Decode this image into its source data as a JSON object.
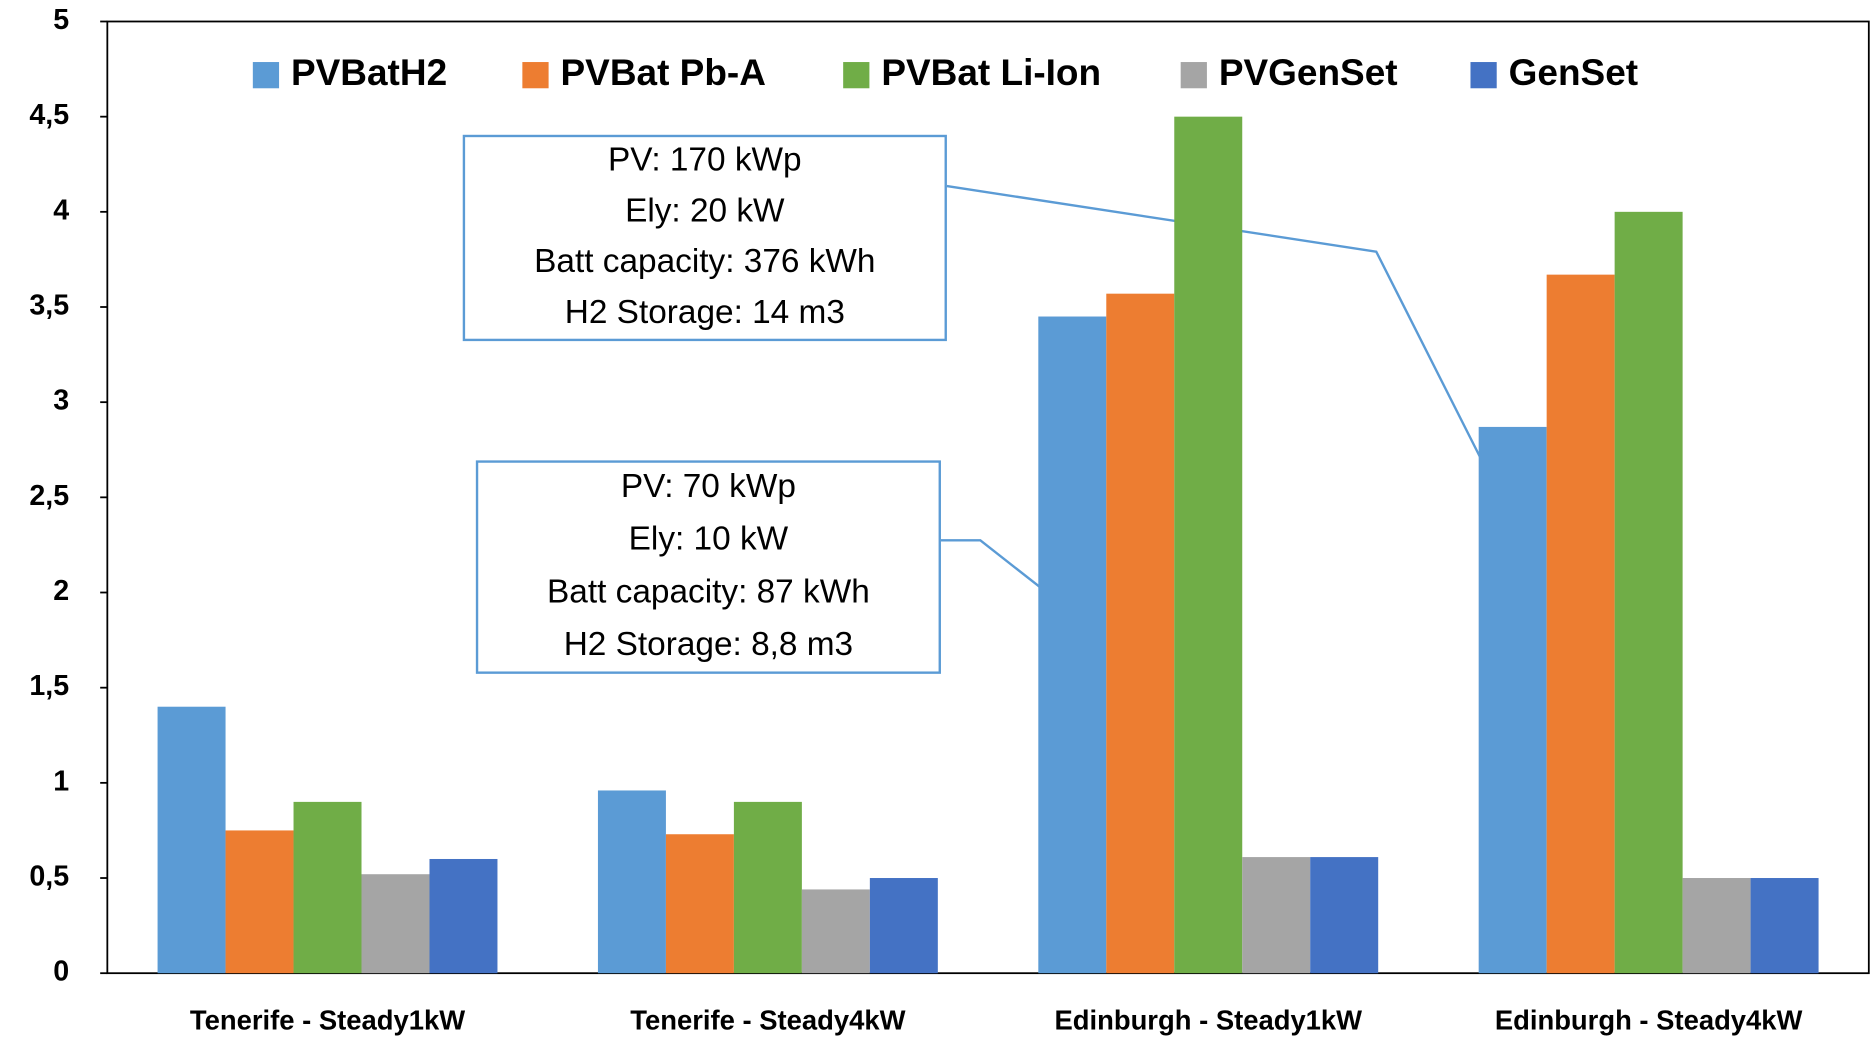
{
  "chart_data": {
    "type": "bar",
    "categories": [
      "Tenerife - Steady1kW",
      "Tenerife - Steady4kW",
      "Edinburgh - Steady1kW",
      "Edinburgh - Steady4kW"
    ],
    "series": [
      {
        "name": "PVBatH2",
        "color": "#5b9bd5",
        "values": [
          1.4,
          0.96,
          3.45,
          2.87
        ]
      },
      {
        "name": "PVBat Pb-A",
        "color": "#ed7d31",
        "values": [
          0.75,
          0.73,
          3.57,
          3.67
        ]
      },
      {
        "name": "PVBat Li-Ion",
        "color": "#70ad47",
        "values": [
          0.9,
          0.9,
          4.5,
          4.0
        ]
      },
      {
        "name": "PVGenSet",
        "color": "#a5a5a5",
        "values": [
          0.52,
          0.44,
          0.61,
          0.5
        ]
      },
      {
        "name": "GenSet",
        "color": "#4472c4",
        "values": [
          0.6,
          0.5,
          0.61,
          0.5
        ]
      }
    ],
    "ylim": [
      0,
      5
    ],
    "yticks": [
      0,
      {
        "value": 0.5,
        "label": "0,5"
      },
      1,
      {
        "value": 1.5,
        "label": "1,5"
      },
      2,
      {
        "value": 2.5,
        "label": "2,5"
      },
      3,
      {
        "value": 3.5,
        "label": "3,5"
      },
      4,
      {
        "value": 4.5,
        "label": "4,5"
      },
      5
    ],
    "legend": "top",
    "annotations": [
      {
        "lines": [
          "PV: 170 kWp",
          "Ely: 20 kW",
          "Batt capacity: 376 kWh",
          "H2 Storage: 14 m3"
        ]
      },
      {
        "lines": [
          "PV: 70 kWp",
          "Ely: 10 kW",
          "Batt capacity: 87 kWh",
          "H2 Storage: 8,8 m3"
        ]
      }
    ]
  }
}
